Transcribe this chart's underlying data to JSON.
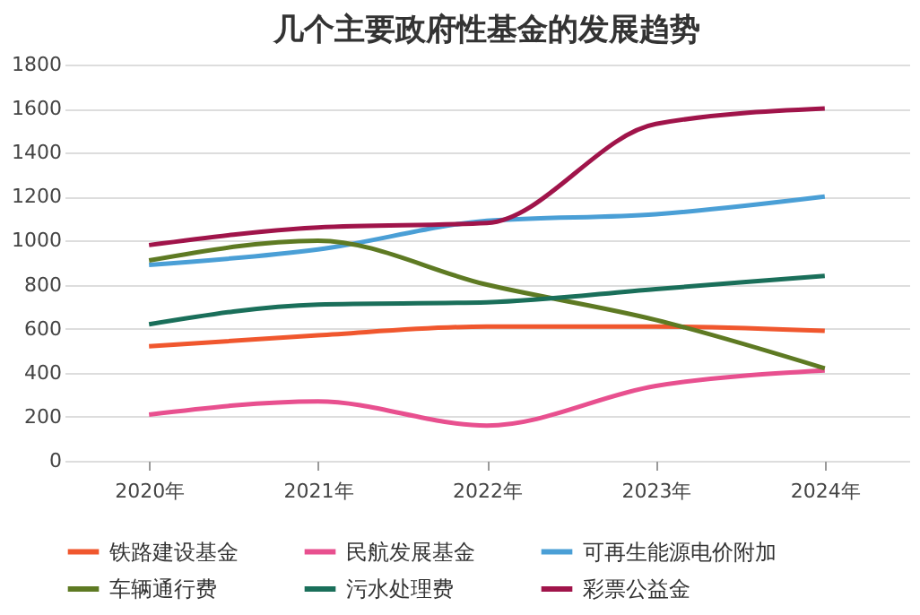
{
  "chart_data": {
    "type": "line",
    "title": "几个主要政府性基金的发展趋势",
    "categories": [
      "2020年",
      "2021年",
      "2022年",
      "2023年",
      "2024年"
    ],
    "series": [
      {
        "name": "铁路建设基金",
        "color": "#f0572e",
        "values": [
          520,
          570,
          610,
          610,
          590
        ]
      },
      {
        "name": "民航发展基金",
        "color": "#e8508f",
        "values": [
          210,
          270,
          160,
          340,
          410
        ]
      },
      {
        "name": "可再生能源电价附加",
        "color": "#4a9fd6",
        "values": [
          890,
          960,
          1090,
          1120,
          1200
        ]
      },
      {
        "name": "车辆通行费",
        "color": "#5e7a23",
        "values": [
          910,
          1000,
          800,
          640,
          420
        ]
      },
      {
        "name": "污水处理费",
        "color": "#1a6f5a",
        "values": [
          620,
          710,
          720,
          780,
          840
        ]
      },
      {
        "name": "彩票公益金",
        "color": "#a0144a",
        "values": [
          980,
          1060,
          1080,
          1530,
          1600
        ]
      }
    ],
    "ylim": [
      0,
      1800
    ],
    "yticks": [
      0,
      200,
      400,
      600,
      800,
      1000,
      1200,
      1400,
      1600,
      1800
    ],
    "grid": "y",
    "legend": "bottom",
    "marker": "none",
    "line_style": "solid"
  }
}
